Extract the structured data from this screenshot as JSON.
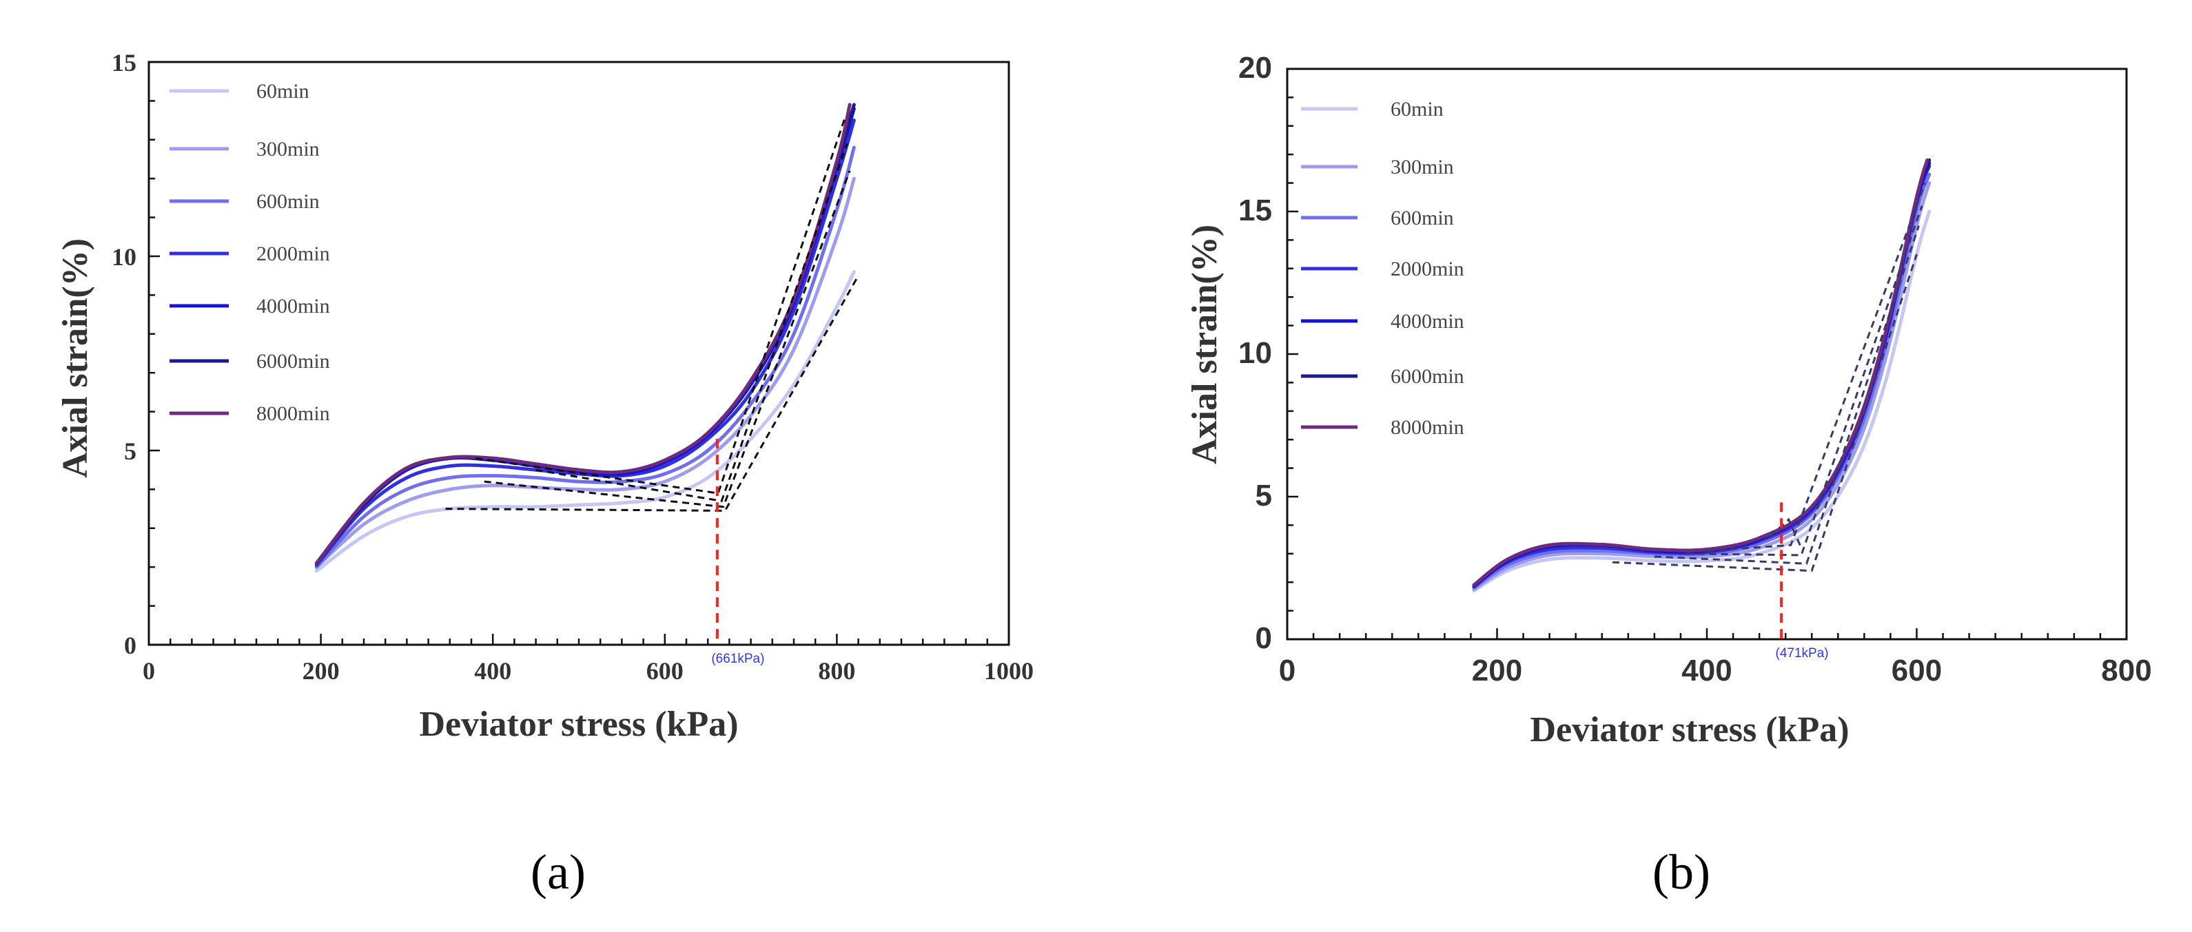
{
  "chart_data": [
    {
      "panel_label": "(a)",
      "type": "line",
      "xlabel": "Deviator stress (kPa)",
      "ylabel": "Axial strain(%)",
      "xlim": [
        0,
        1000
      ],
      "ylim": [
        0,
        15
      ],
      "xticks": [
        "0",
        "200",
        "400",
        "600",
        "800",
        "1000"
      ],
      "yticks": [
        "0",
        "5",
        "10",
        "15"
      ],
      "annotation": "(661kPa)",
      "annotation_x": 661,
      "annotation_y_top": 5.3,
      "series": [
        {
          "name": "60min",
          "color": "#c6c6f4",
          "points": [
            [
              195,
              1.9
            ],
            [
              250,
              2.8
            ],
            [
              300,
              3.3
            ],
            [
              350,
              3.5
            ],
            [
              400,
              3.55
            ],
            [
              450,
              3.55
            ],
            [
              500,
              3.6
            ],
            [
              550,
              3.65
            ],
            [
              600,
              3.8
            ],
            [
              650,
              4.3
            ],
            [
              700,
              5.3
            ],
            [
              750,
              6.7
            ],
            [
              800,
              8.7
            ],
            [
              820,
              9.6
            ]
          ]
        },
        {
          "name": "300min",
          "color": "#9d9df0",
          "points": [
            [
              195,
              2.0
            ],
            [
              250,
              3.1
            ],
            [
              300,
              3.7
            ],
            [
              350,
              4.0
            ],
            [
              400,
              4.1
            ],
            [
              450,
              4.05
            ],
            [
              500,
              4.0
            ],
            [
              550,
              4.0
            ],
            [
              600,
              4.2
            ],
            [
              650,
              4.8
            ],
            [
              700,
              5.9
            ],
            [
              750,
              7.6
            ],
            [
              800,
              10.5
            ],
            [
              820,
              12.0
            ]
          ]
        },
        {
          "name": "600min",
          "color": "#7070ee",
          "points": [
            [
              195,
              2.0
            ],
            [
              250,
              3.3
            ],
            [
              300,
              4.0
            ],
            [
              350,
              4.3
            ],
            [
              400,
              4.35
            ],
            [
              450,
              4.3
            ],
            [
              500,
              4.2
            ],
            [
              550,
              4.2
            ],
            [
              600,
              4.4
            ],
            [
              650,
              5.0
            ],
            [
              700,
              6.2
            ],
            [
              750,
              8.0
            ],
            [
              800,
              11.2
            ],
            [
              820,
              12.8
            ]
          ]
        },
        {
          "name": "2000min",
          "color": "#3030e0",
          "points": [
            [
              195,
              2.05
            ],
            [
              250,
              3.5
            ],
            [
              300,
              4.3
            ],
            [
              350,
              4.6
            ],
            [
              400,
              4.6
            ],
            [
              450,
              4.5
            ],
            [
              500,
              4.4
            ],
            [
              550,
              4.35
            ],
            [
              600,
              4.6
            ],
            [
              650,
              5.3
            ],
            [
              700,
              6.5
            ],
            [
              750,
              8.6
            ],
            [
              800,
              12.0
            ],
            [
              820,
              13.5
            ]
          ]
        },
        {
          "name": "4000min",
          "color": "#1515d0",
          "points": [
            [
              195,
              2.1
            ],
            [
              250,
              3.6
            ],
            [
              300,
              4.5
            ],
            [
              350,
              4.8
            ],
            [
              400,
              4.75
            ],
            [
              450,
              4.6
            ],
            [
              500,
              4.45
            ],
            [
              550,
              4.4
            ],
            [
              600,
              4.7
            ],
            [
              650,
              5.4
            ],
            [
              700,
              6.7
            ],
            [
              750,
              8.8
            ],
            [
              800,
              12.3
            ],
            [
              820,
              13.8
            ]
          ]
        },
        {
          "name": "6000min",
          "color": "#1a1a8c",
          "points": [
            [
              195,
              2.1
            ],
            [
              250,
              3.6
            ],
            [
              300,
              4.55
            ],
            [
              350,
              4.8
            ],
            [
              400,
              4.8
            ],
            [
              450,
              4.65
            ],
            [
              500,
              4.5
            ],
            [
              550,
              4.45
            ],
            [
              600,
              4.75
            ],
            [
              650,
              5.45
            ],
            [
              700,
              6.8
            ],
            [
              750,
              8.9
            ],
            [
              800,
              12.4
            ],
            [
              820,
              13.9
            ]
          ]
        },
        {
          "name": "8000min",
          "color": "#6e2a7e",
          "points": [
            [
              195,
              2.1
            ],
            [
              250,
              3.65
            ],
            [
              300,
              4.55
            ],
            [
              350,
              4.82
            ],
            [
              400,
              4.8
            ],
            [
              450,
              4.65
            ],
            [
              500,
              4.5
            ],
            [
              550,
              4.45
            ],
            [
              600,
              4.75
            ],
            [
              650,
              5.45
            ],
            [
              700,
              6.8
            ],
            [
              750,
              8.9
            ],
            [
              800,
              12.45
            ],
            [
              815,
              13.9
            ]
          ]
        }
      ],
      "dashed_lines": [
        [
          [
            345,
            3.5
          ],
          [
            670,
            3.45
          ],
          [
            825,
            9.5
          ]
        ],
        [
          [
            390,
            4.2
          ],
          [
            668,
            3.55
          ],
          [
            815,
            12.2
          ]
        ],
        [
          [
            450,
            4.5
          ],
          [
            666,
            3.7
          ],
          [
            812,
            12.9
          ]
        ],
        [
          [
            380,
            4.8
          ],
          [
            662,
            3.9
          ],
          [
            810,
            13.6
          ]
        ]
      ]
    },
    {
      "panel_label": "(b)",
      "type": "line",
      "xlabel": "Deviator stress (kPa)",
      "ylabel": "Axial strain(%)",
      "xlim": [
        0,
        800
      ],
      "ylim": [
        0,
        20
      ],
      "xticks": [
        "0",
        "200",
        "400",
        "600",
        "800"
      ],
      "yticks": [
        "0",
        "5",
        "10",
        "15",
        "20"
      ],
      "annotation": "(471kPa)",
      "annotation_x": 471,
      "annotation_y_top": 4.8,
      "series": [
        {
          "name": "60min",
          "color": "#c6c6f4",
          "points": [
            [
              178,
              1.7
            ],
            [
              210,
              2.4
            ],
            [
              250,
              2.8
            ],
            [
              300,
              2.85
            ],
            [
              350,
              2.75
            ],
            [
              400,
              2.75
            ],
            [
              450,
              3.0
            ],
            [
              500,
              3.9
            ],
            [
              540,
              6.0
            ],
            [
              570,
              9.0
            ],
            [
              600,
              13.5
            ],
            [
              612,
              15.0
            ]
          ]
        },
        {
          "name": "300min",
          "color": "#9d9df0",
          "points": [
            [
              178,
              1.75
            ],
            [
              210,
              2.5
            ],
            [
              250,
              2.95
            ],
            [
              300,
              3.0
            ],
            [
              350,
              2.9
            ],
            [
              400,
              2.9
            ],
            [
              450,
              3.2
            ],
            [
              500,
              4.2
            ],
            [
              540,
              6.5
            ],
            [
              570,
              9.8
            ],
            [
              600,
              14.5
            ],
            [
              612,
              16.0
            ]
          ]
        },
        {
          "name": "600min",
          "color": "#7070ee",
          "points": [
            [
              178,
              1.8
            ],
            [
              210,
              2.6
            ],
            [
              250,
              3.05
            ],
            [
              300,
              3.1
            ],
            [
              350,
              3.0
            ],
            [
              400,
              3.0
            ],
            [
              450,
              3.35
            ],
            [
              500,
              4.4
            ],
            [
              540,
              6.8
            ],
            [
              570,
              10.2
            ],
            [
              600,
              15.0
            ],
            [
              612,
              16.3
            ]
          ]
        },
        {
          "name": "2000min",
          "color": "#3030e0",
          "points": [
            [
              178,
              1.85
            ],
            [
              210,
              2.7
            ],
            [
              250,
              3.15
            ],
            [
              300,
              3.2
            ],
            [
              350,
              3.05
            ],
            [
              400,
              3.05
            ],
            [
              450,
              3.45
            ],
            [
              500,
              4.5
            ],
            [
              540,
              7.0
            ],
            [
              570,
              10.5
            ],
            [
              600,
              15.3
            ],
            [
              612,
              16.6
            ]
          ]
        },
        {
          "name": "4000min",
          "color": "#1515d0",
          "points": [
            [
              178,
              1.85
            ],
            [
              210,
              2.75
            ],
            [
              250,
              3.25
            ],
            [
              300,
              3.3
            ],
            [
              350,
              3.1
            ],
            [
              400,
              3.1
            ],
            [
              450,
              3.5
            ],
            [
              500,
              4.6
            ],
            [
              540,
              7.1
            ],
            [
              570,
              10.6
            ],
            [
              600,
              15.4
            ],
            [
              612,
              16.7
            ]
          ]
        },
        {
          "name": "6000min",
          "color": "#1a1a8c",
          "points": [
            [
              178,
              1.9
            ],
            [
              210,
              2.8
            ],
            [
              250,
              3.3
            ],
            [
              300,
              3.3
            ],
            [
              350,
              3.15
            ],
            [
              400,
              3.15
            ],
            [
              450,
              3.55
            ],
            [
              500,
              4.65
            ],
            [
              540,
              7.2
            ],
            [
              570,
              10.7
            ],
            [
              600,
              15.5
            ],
            [
              612,
              16.8
            ]
          ]
        },
        {
          "name": "8000min",
          "color": "#6e2a7e",
          "points": [
            [
              178,
              1.9
            ],
            [
              210,
              2.8
            ],
            [
              250,
              3.3
            ],
            [
              300,
              3.32
            ],
            [
              350,
              3.15
            ],
            [
              400,
              3.15
            ],
            [
              450,
              3.55
            ],
            [
              500,
              4.65
            ],
            [
              540,
              7.2
            ],
            [
              570,
              10.7
            ],
            [
              600,
              15.5
            ],
            [
              610,
              16.8
            ]
          ]
        }
      ],
      "dashed_lines": [
        [
          [
            310,
            2.7
          ],
          [
            500,
            2.4
          ],
          [
            600,
            13.5
          ]
        ],
        [
          [
            350,
            2.9
          ],
          [
            495,
            2.65
          ],
          [
            602,
            14.5
          ]
        ],
        [
          [
            380,
            3.0
          ],
          [
            490,
            2.95
          ],
          [
            605,
            15.2
          ]
        ],
        [
          [
            400,
            3.1
          ],
          [
            480,
            3.3
          ],
          [
            608,
            16.0
          ]
        ],
        [
          [
            460,
            3.6
          ],
          [
            478,
            4.2
          ],
          [
            490,
            3.2
          ]
        ]
      ]
    }
  ]
}
